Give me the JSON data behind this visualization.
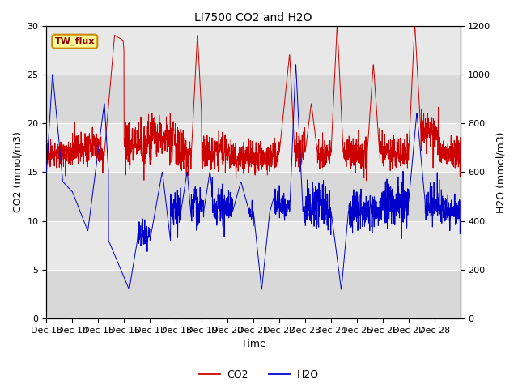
{
  "title": "LI7500 CO2 and H2O",
  "xlabel": "Time",
  "ylabel_left": "CO2 (mmol/m3)",
  "ylabel_right": "H2O (mmol/m3)",
  "ylim_left": [
    0,
    30
  ],
  "ylim_right": [
    0,
    1200
  ],
  "x_tick_labels": [
    "Dec 13",
    "Dec 14",
    "Dec 15",
    "Dec 16",
    "Dec 17",
    "Dec 18",
    "Dec 19",
    "Dec 20",
    "Dec 21",
    "Dec 22",
    "Dec 23",
    "Dec 24",
    "Dec 25",
    "Dec 26",
    "Dec 27",
    "Dec 28"
  ],
  "legend_label": "TW_flux",
  "co2_color": "#cc0000",
  "h2o_color": "#0000cc",
  "annotation_fg": "#990000",
  "annotation_bg": "#ffff99",
  "annotation_border": "#cc8800",
  "band_colors": [
    "#d8d8d8",
    "#e8e8e8"
  ],
  "fig_bg": "#ffffff",
  "title_fontsize": 10,
  "label_fontsize": 9,
  "tick_fontsize": 8
}
